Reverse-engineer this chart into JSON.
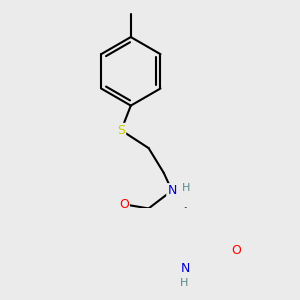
{
  "bg_color": "#ebebeb",
  "bond_color": "#000000",
  "bond_width": 1.5,
  "atom_colors": {
    "N": "#0000cc",
    "O": "#ff0000",
    "S": "#cccc00",
    "H": "#5a8a8a",
    "C": "#000000"
  }
}
